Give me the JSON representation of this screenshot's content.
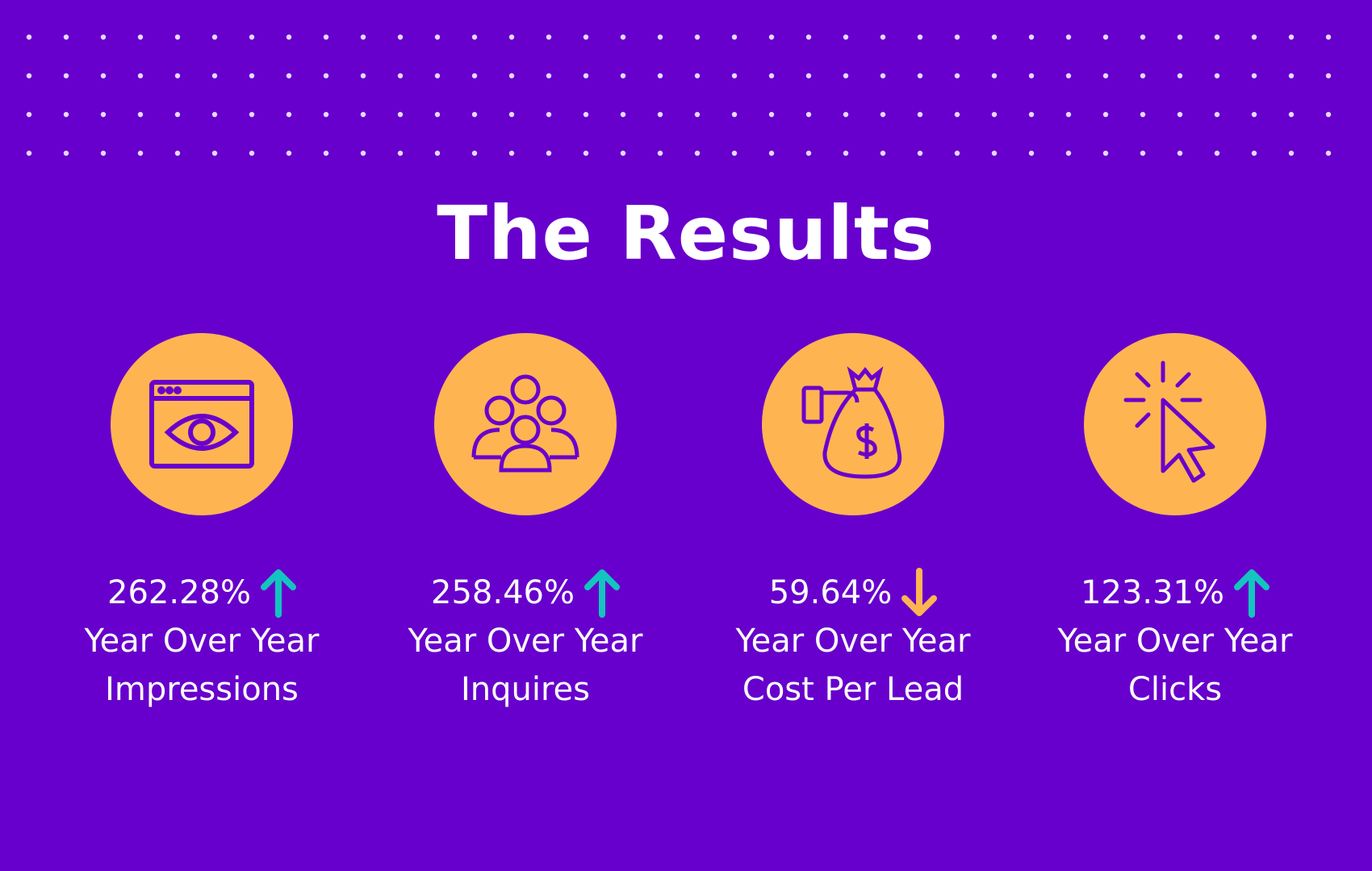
{
  "title": "The Results",
  "items": [
    {
      "value": "262.28%",
      "line1": "Year Over Year",
      "line2": "Impressions"
    },
    {
      "value": "258.46%",
      "line1": "Year Over Year",
      "line2": "Inquires"
    },
    {
      "value": "59.64%",
      "line1": "Year Over Year",
      "line2": "Cost Per Lead"
    },
    {
      "value": "123.31%",
      "line1": "Year Over Year",
      "line2": "Clicks"
    }
  ]
}
